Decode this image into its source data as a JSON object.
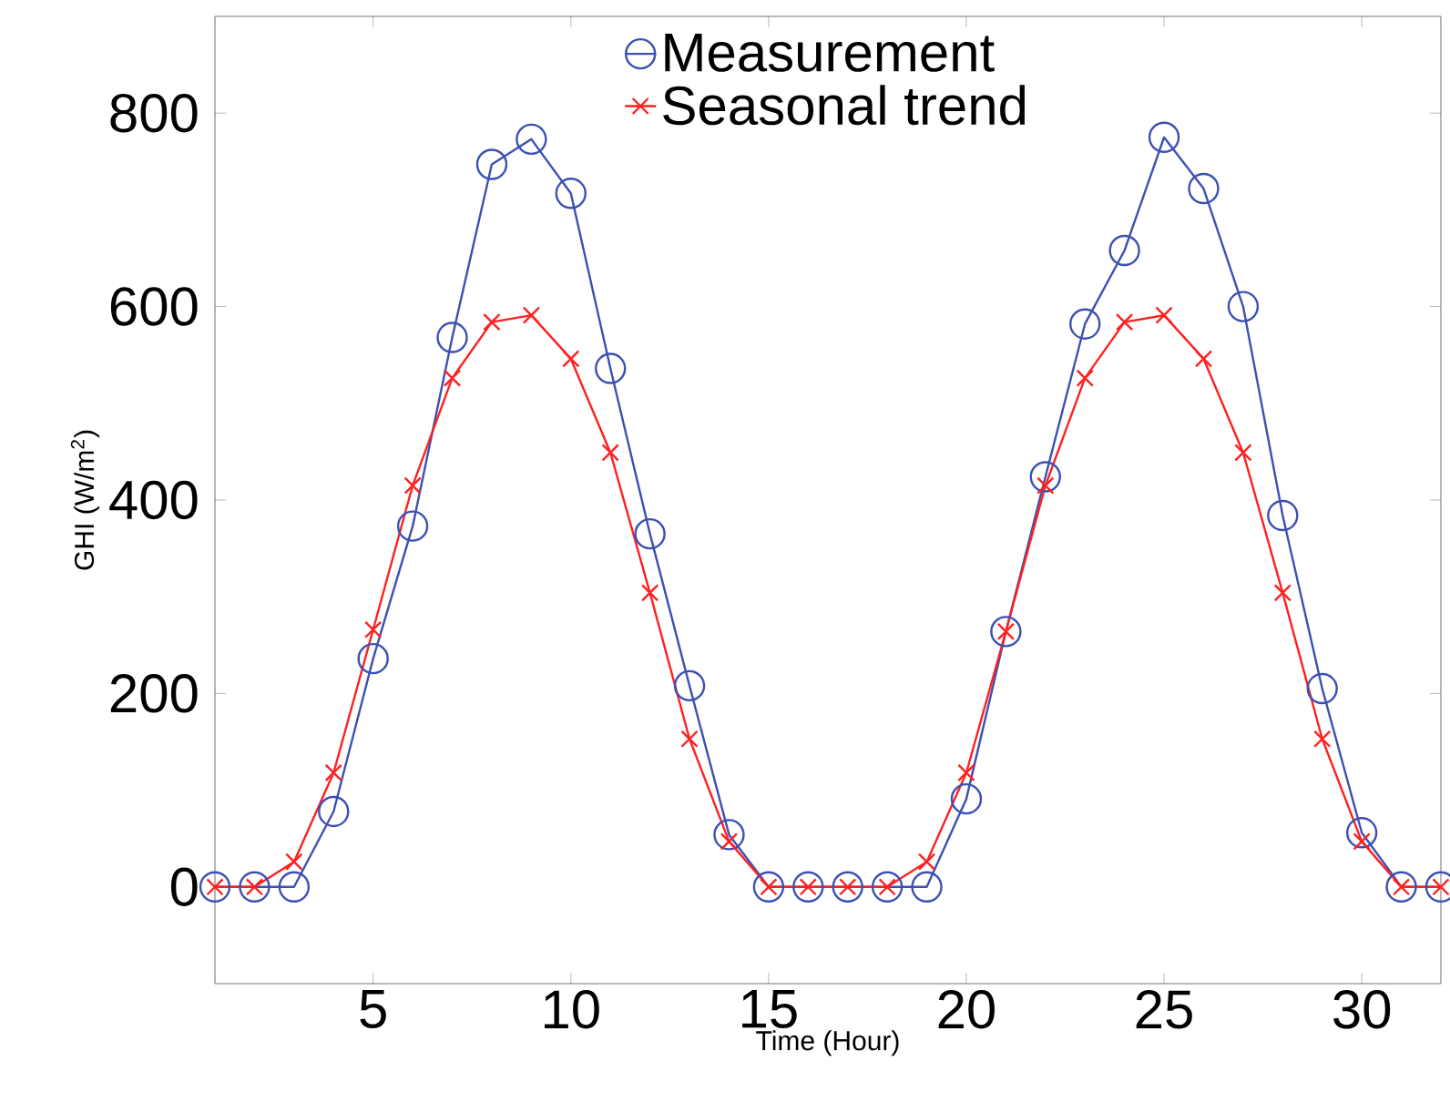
{
  "chart_data": {
    "type": "line",
    "xlabel": "Time (Hour)",
    "ylabel": "GHI (W/m$^{2}$)",
    "x": [
      1,
      2,
      3,
      4,
      5,
      6,
      7,
      8,
      9,
      10,
      11,
      12,
      13,
      14,
      15,
      16,
      17,
      18,
      19,
      20,
      21,
      22,
      23,
      24,
      25,
      26,
      27,
      28,
      29,
      30,
      31,
      32
    ],
    "series": [
      {
        "name": "Measurement",
        "color": "#3c50b4",
        "marker": "circle",
        "values": [
          0,
          0,
          0,
          78,
          236,
          373,
          568,
          747,
          773,
          717,
          536,
          365,
          208,
          54,
          0,
          0,
          0,
          0,
          0,
          91,
          264,
          424,
          582,
          658,
          775,
          722,
          600,
          384,
          205,
          56,
          0,
          0
        ]
      },
      {
        "name": "Seasonal trend",
        "color": "#ff2020",
        "marker": "cross",
        "values": [
          0,
          0,
          26,
          118,
          266,
          415,
          526,
          584,
          591,
          546,
          449,
          304,
          153,
          47,
          0,
          0,
          0,
          0,
          26,
          118,
          264,
          415,
          526,
          584,
          591,
          546,
          449,
          304,
          153,
          47,
          0,
          0
        ]
      }
    ],
    "xlim": [
      1,
      32
    ],
    "ylim": [
      -100,
      900
    ],
    "xticks": [
      5,
      10,
      15,
      20,
      25,
      30
    ],
    "yticks": [
      0,
      200,
      400,
      600,
      800
    ],
    "legend": "top",
    "grid": false,
    "line_style": "solid"
  }
}
